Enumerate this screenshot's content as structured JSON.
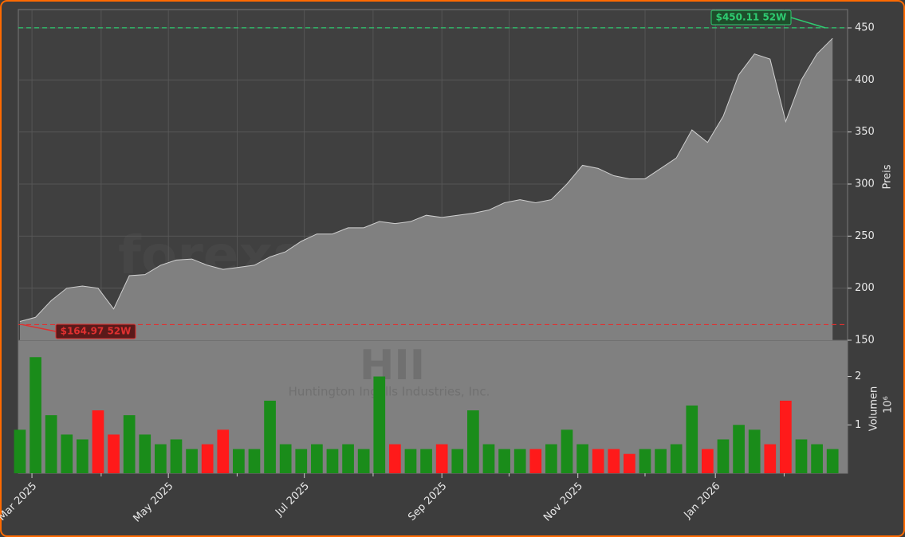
{
  "chart_data": {
    "type": "stock",
    "watermark": "forexsignale.trade",
    "ticker": "HII",
    "company": "Huntington Ingalls Industries, Inc.",
    "categories": [
      null,
      null,
      null,
      null,
      null,
      null,
      null,
      null,
      null,
      null,
      null,
      null,
      null,
      null,
      null,
      null,
      null,
      null,
      null,
      null,
      null,
      null,
      null,
      null,
      null,
      null,
      null,
      null,
      null,
      null,
      null,
      null,
      null,
      null,
      null,
      null,
      null,
      null,
      null,
      null,
      null,
      null,
      null,
      null,
      null,
      null,
      null,
      null,
      null,
      null,
      null,
      null,
      null
    ],
    "xlim": [
      -0.1,
      52.96
    ],
    "xticks": [
      {
        "value": 0.77,
        "label": "Mar 2025"
      },
      {
        "value": 9.5,
        "label": "May 2025"
      },
      {
        "value": 18.2,
        "label": "Jul 2025"
      },
      {
        "value": 27.0,
        "label": "Sep 2025"
      },
      {
        "value": 35.7,
        "label": "Nov 2025"
      },
      {
        "value": 44.5,
        "label": "Jan 2026"
      }
    ],
    "xminor": [
      5.2,
      13.9,
      22.6,
      31.3,
      40.0,
      48.9
    ],
    "grid": true,
    "price": {
      "ylabel": "Preis",
      "color": "#808080",
      "ylim": [
        150,
        467.6
      ],
      "yticks": [
        150,
        200,
        250,
        300,
        350,
        400,
        450
      ],
      "values": [
        168,
        172,
        188,
        200,
        202,
        200,
        180,
        212,
        213,
        222,
        227,
        228,
        222,
        218,
        220,
        222,
        230,
        235,
        245,
        252,
        252,
        258,
        258,
        264,
        262,
        264,
        270,
        268,
        270,
        272,
        275,
        282,
        285,
        282,
        285,
        300,
        318,
        315,
        308,
        305,
        305,
        315,
        325,
        352,
        340,
        365,
        405,
        425,
        420,
        360,
        400,
        425,
        440
      ]
    },
    "volume": {
      "ylabel": "Volumen",
      "unit": "10⁶",
      "ylim": [
        0,
        2.75
      ],
      "yticks": [
        1,
        2
      ],
      "up_color": "#1a8c1a",
      "down_color": "#ff1a1a",
      "values": [
        0.9,
        2.4,
        1.2,
        0.8,
        0.7,
        1.3,
        0.8,
        1.2,
        0.8,
        0.6,
        0.7,
        0.5,
        0.6,
        0.9,
        0.5,
        0.5,
        1.5,
        0.6,
        0.5,
        0.6,
        0.5,
        0.6,
        0.5,
        2.0,
        0.6,
        0.5,
        0.5,
        0.6,
        0.5,
        1.3,
        0.6,
        0.5,
        0.5,
        0.5,
        0.6,
        0.9,
        0.6,
        0.5,
        0.5,
        0.4,
        0.5,
        0.5,
        0.6,
        1.4,
        0.5,
        0.7,
        1.0,
        0.9,
        0.6,
        1.5,
        0.7,
        0.6,
        0.5
      ]
    },
    "high": {
      "value": 450.11,
      "label": "$450.11 52W",
      "color": "#2ecc71"
    },
    "low": {
      "value": 164.97,
      "label": "$164.97 52W",
      "color": "#e03030"
    }
  }
}
